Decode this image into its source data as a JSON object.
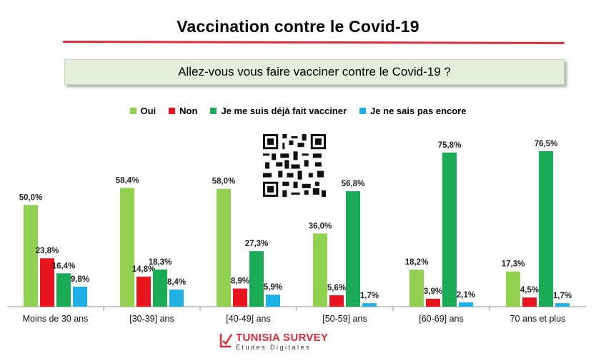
{
  "title": "Vaccination contre le Covid-19",
  "question": "Allez-vous  vous faire vacciner contre le Covid-19  ?",
  "brand": {
    "name": "TUNISIA SURVEY",
    "tagline": "Études Digitales"
  },
  "colors": {
    "title_rule": "#d92b3a",
    "question_bg": "#e4eedb"
  },
  "icons": [
    "qr-code-icon",
    "tunisia-survey-logo-icon"
  ],
  "chart_data": {
    "type": "bar",
    "categories": [
      "Moins de 30 ans",
      "[30-39] ans",
      "[40-49] ans",
      "[50-59] ans",
      "[60-69] ans",
      "70 ans et plus"
    ],
    "series": [
      {
        "name": "Oui",
        "color": "#92d050",
        "values": [
          50.0,
          58.4,
          58.0,
          36.0,
          18.2,
          17.3
        ],
        "labels": [
          "50,0%",
          "58,4%",
          "58,0%",
          "36,0%",
          "18,2%",
          "17,3%"
        ]
      },
      {
        "name": "Non",
        "color": "#e8141e",
        "values": [
          23.8,
          14.8,
          8.9,
          5.6,
          3.9,
          4.5
        ],
        "labels": [
          "23,8%",
          "14,8%",
          "8,9%",
          "5,6%",
          "3,9%",
          "4,5%"
        ]
      },
      {
        "name": "Je me suis déjà fait vacciner",
        "color": "#1aab57",
        "values": [
          16.4,
          18.3,
          27.3,
          56.8,
          75.8,
          76.5
        ],
        "labels": [
          "16,4%",
          "18,3%",
          "27,3%",
          "56,8%",
          "75,8%",
          "76,5%"
        ]
      },
      {
        "name": "Je ne sais pas encore",
        "color": "#1fb0e6",
        "values": [
          9.8,
          8.4,
          5.9,
          1.7,
          2.1,
          1.7
        ],
        "labels": [
          "9,8%",
          "8,4%",
          "5,9%",
          "1,7%",
          "2,1%",
          "1,7%"
        ]
      }
    ],
    "ylim": [
      0,
      100
    ],
    "grid": false,
    "legend_position": "top-center"
  }
}
